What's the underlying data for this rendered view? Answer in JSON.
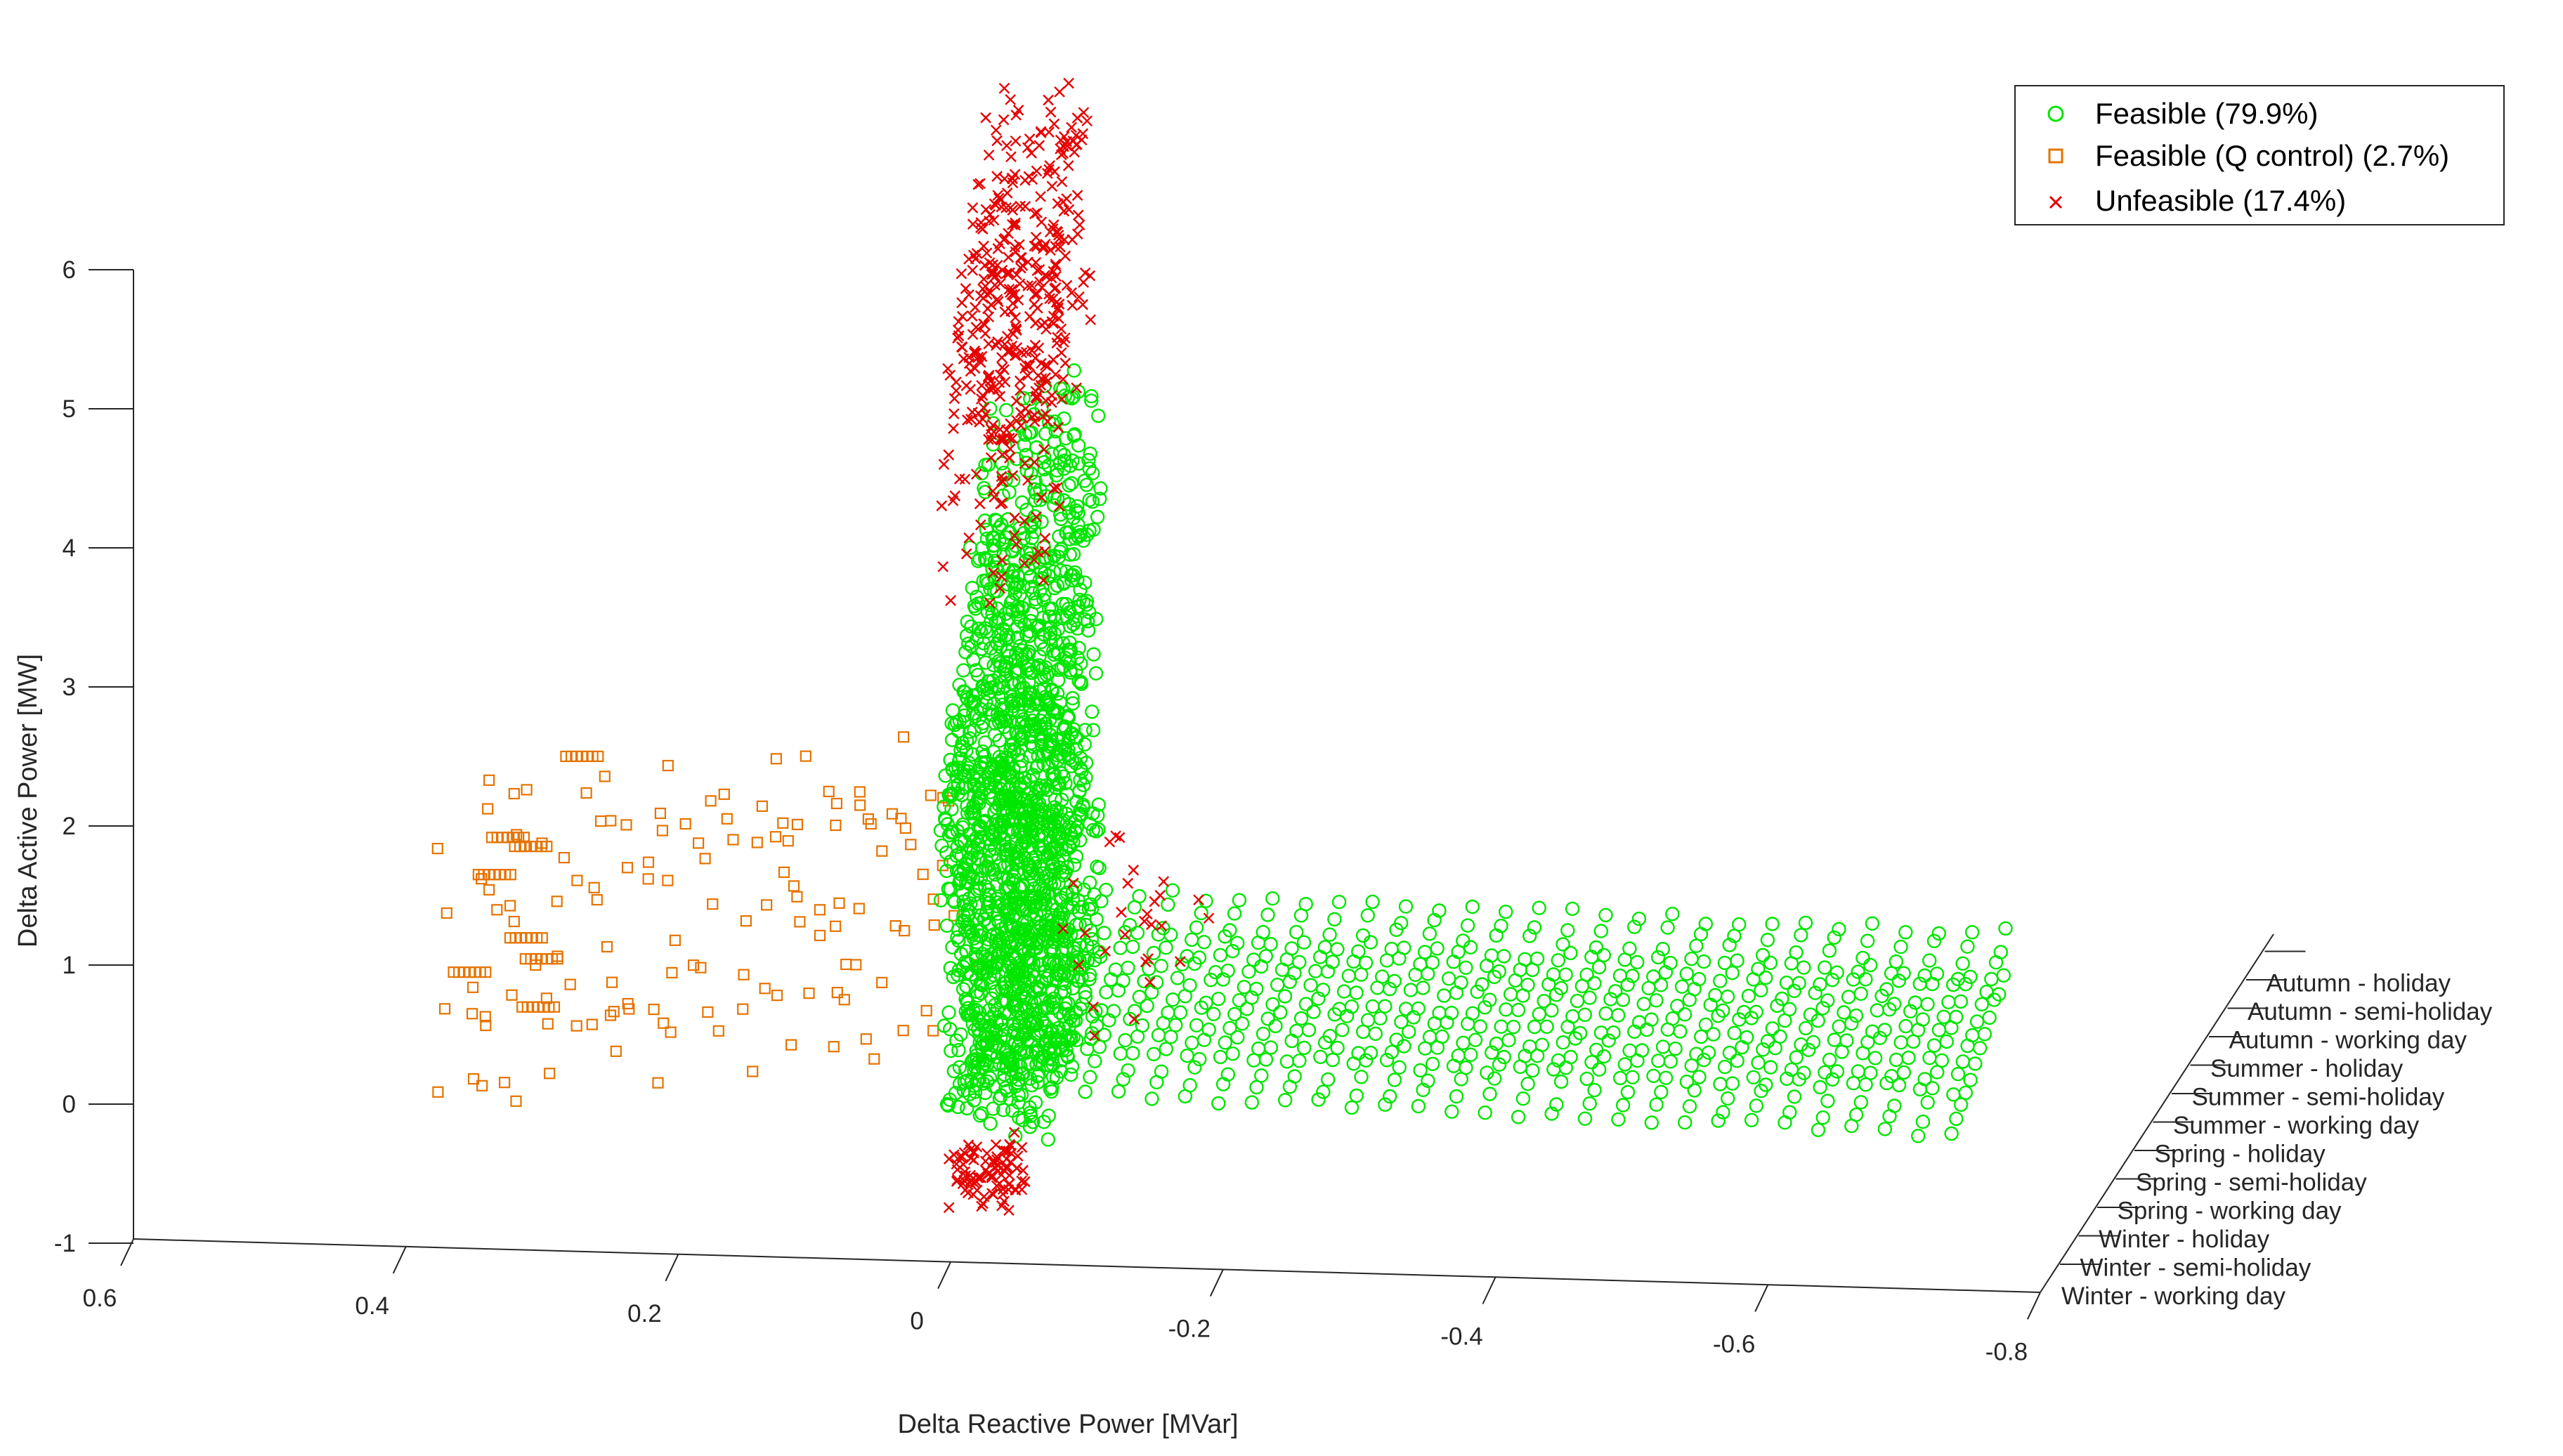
{
  "chart_data": {
    "type": "scatter",
    "dimensions": "3d",
    "xlabel": "Delta Reactive Power [MVar]",
    "ylabel": "Delta Active Power [MW]",
    "xlim": [
      0.6,
      -0.8
    ],
    "ylim": [
      -1,
      6
    ],
    "x_ticks": [
      "0.6",
      "0.4",
      "0.2",
      "0",
      "-0.2",
      "-0.4",
      "-0.6",
      "-0.8"
    ],
    "y_ticks": [
      "6",
      "5",
      "4",
      "3",
      "2",
      "1",
      "0",
      "-1"
    ],
    "z_categories": [
      "Winter - working day",
      "Winter - semi-holiday",
      "Winter - holiday",
      "Spring - working day",
      "Spring - semi-holiday",
      "Spring - holiday",
      "Summer - working day",
      "Summer - semi-holiday",
      "Summer - holiday",
      "Autumn - working day",
      "Autumn - semi-holiday",
      "Autumn - holiday"
    ],
    "legend_position": "top-right",
    "grid": false,
    "series": [
      {
        "name": "Feasible (79.9%)",
        "marker": "circle",
        "color": "#00e600",
        "q_range": [
          0.0,
          -0.72
        ],
        "p_range": [
          -0.4,
          5.2
        ]
      },
      {
        "name": "Feasible (Q control) (2.7%)",
        "marker": "square",
        "color": "#e67300",
        "q_range": [
          0.4,
          0.0
        ],
        "p_range": [
          -0.3,
          2.1
        ]
      },
      {
        "name": "Unfeasible (17.4%)",
        "marker": "x",
        "color": "#e60000",
        "q_range": [
          0.0,
          -0.18
        ],
        "p_range": [
          4.4,
          6.5
        ]
      }
    ]
  }
}
